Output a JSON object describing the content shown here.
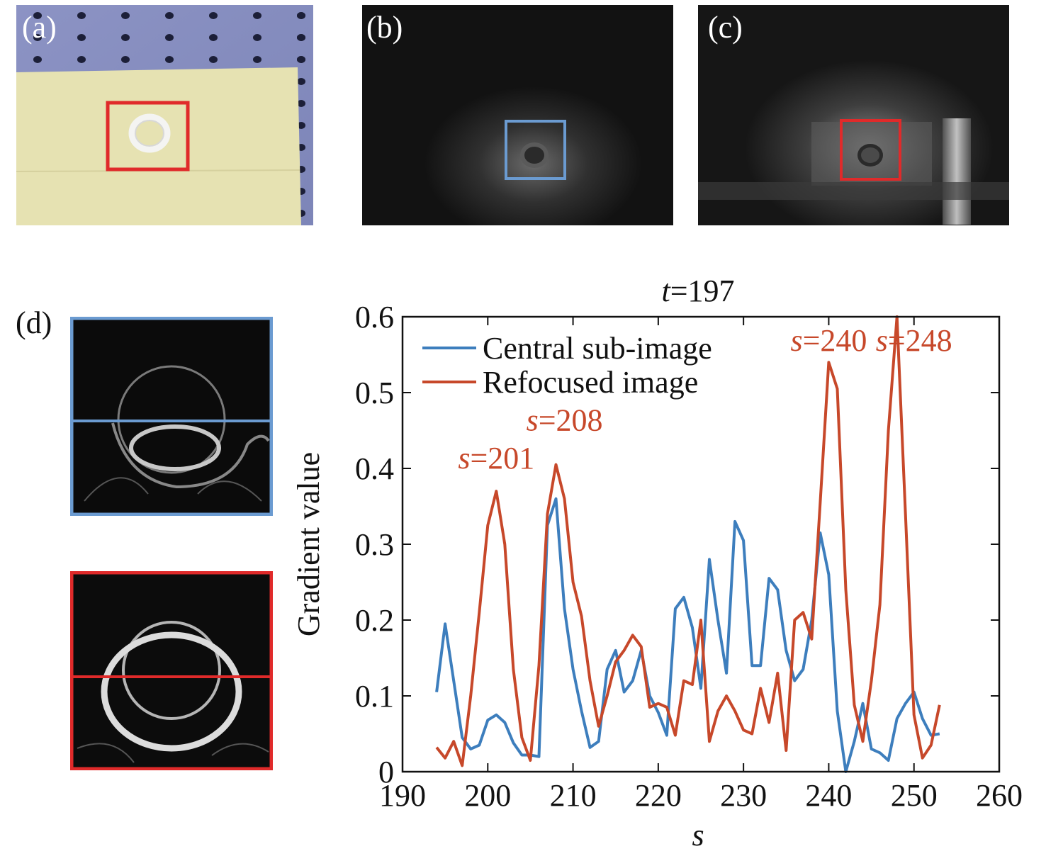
{
  "panels": {
    "a": {
      "label": "(a)"
    },
    "b": {
      "label": "(b)"
    },
    "c": {
      "label": "(c)"
    },
    "d": {
      "label": "(d)"
    }
  },
  "colors": {
    "blue": "#3d7ebd",
    "orange": "#c7482a",
    "box_red": "#e02a2a",
    "box_blue": "#6b9bd1"
  },
  "chart_data": {
    "type": "line",
    "title": "t=197",
    "title_italic_part": "t",
    "title_rest": "=197",
    "xlabel": "s",
    "ylabel": "Gradient value",
    "xlim": [
      190,
      260
    ],
    "ylim": [
      0,
      0.6
    ],
    "xticks": [
      190,
      200,
      210,
      220,
      230,
      240,
      250,
      260
    ],
    "yticks": [
      0,
      0.1,
      0.2,
      0.3,
      0.4,
      0.5,
      0.6
    ],
    "ytick_labels": [
      "0",
      "0.1",
      "0.2",
      "0.3",
      "0.4",
      "0.5",
      "0.6"
    ],
    "legend_position": "top-left",
    "series": [
      {
        "name": "Central sub-image",
        "color": "#3d7ebd",
        "x": [
          194,
          195,
          196,
          197,
          198,
          199,
          200,
          201,
          202,
          203,
          204,
          205,
          206,
          207,
          208,
          209,
          210,
          211,
          212,
          213,
          214,
          215,
          216,
          217,
          218,
          219,
          220,
          221,
          222,
          223,
          224,
          225,
          226,
          227,
          228,
          229,
          230,
          231,
          232,
          233,
          234,
          235,
          236,
          237,
          238,
          239,
          240,
          241,
          242,
          243,
          244,
          245,
          246,
          247,
          248,
          249,
          250,
          251,
          252,
          253
        ],
        "y": [
          0.105,
          0.195,
          0.12,
          0.045,
          0.03,
          0.035,
          0.068,
          0.075,
          0.065,
          0.038,
          0.022,
          0.022,
          0.02,
          0.325,
          0.36,
          0.215,
          0.135,
          0.08,
          0.032,
          0.04,
          0.135,
          0.16,
          0.105,
          0.12,
          0.16,
          0.1,
          0.078,
          0.048,
          0.215,
          0.23,
          0.19,
          0.11,
          0.28,
          0.2,
          0.13,
          0.33,
          0.305,
          0.14,
          0.14,
          0.255,
          0.24,
          0.16,
          0.12,
          0.135,
          0.2,
          0.315,
          0.26,
          0.08,
          0.0,
          0.04,
          0.09,
          0.03,
          0.025,
          0.015,
          0.07,
          0.09,
          0.105,
          0.07,
          0.048,
          0.05
        ]
      },
      {
        "name": "Refocused image",
        "color": "#c7482a",
        "x": [
          194,
          195,
          196,
          197,
          198,
          199,
          200,
          201,
          202,
          203,
          204,
          205,
          206,
          207,
          208,
          209,
          210,
          211,
          212,
          213,
          214,
          215,
          216,
          217,
          218,
          219,
          220,
          221,
          222,
          223,
          224,
          225,
          226,
          227,
          228,
          229,
          230,
          231,
          232,
          233,
          234,
          235,
          236,
          237,
          238,
          239,
          240,
          241,
          242,
          243,
          244,
          245,
          246,
          247,
          248,
          249,
          250,
          251,
          252,
          253
        ],
        "y": [
          0.032,
          0.018,
          0.04,
          0.008,
          0.1,
          0.21,
          0.325,
          0.37,
          0.3,
          0.135,
          0.045,
          0.015,
          0.14,
          0.34,
          0.405,
          0.36,
          0.25,
          0.205,
          0.12,
          0.06,
          0.1,
          0.145,
          0.16,
          0.18,
          0.165,
          0.085,
          0.09,
          0.085,
          0.048,
          0.12,
          0.115,
          0.2,
          0.04,
          0.08,
          0.1,
          0.08,
          0.055,
          0.05,
          0.11,
          0.065,
          0.13,
          0.028,
          0.2,
          0.21,
          0.175,
          0.355,
          0.54,
          0.505,
          0.24,
          0.088,
          0.04,
          0.12,
          0.22,
          0.45,
          0.6,
          0.34,
          0.075,
          0.018,
          0.035,
          0.088
        ]
      }
    ],
    "annotations": [
      {
        "italic": "s",
        "text": "=201",
        "x": 201,
        "y": 0.4,
        "color": "#c7482a"
      },
      {
        "italic": "s",
        "text": "=208",
        "x": 209,
        "y": 0.45,
        "color": "#c7482a"
      },
      {
        "italic": "s",
        "text": "=240",
        "x": 240,
        "y": 0.555,
        "color": "#c7482a"
      },
      {
        "italic": "s",
        "text": "=248",
        "x": 250,
        "y": 0.555,
        "color": "#c7482a"
      }
    ]
  }
}
